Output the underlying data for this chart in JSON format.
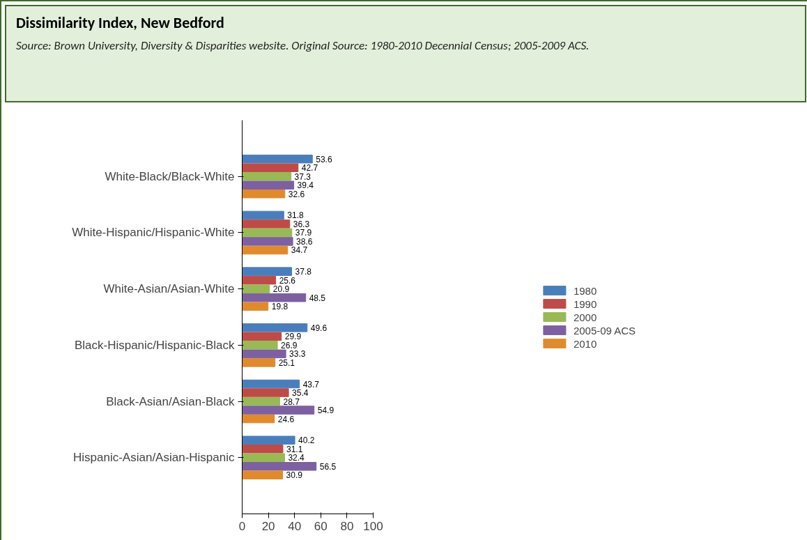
{
  "chart_data": {
    "type": "bar",
    "orientation": "horizontal",
    "title": "Dissimilarity Index, New Bedford",
    "subtitle": "Source: Brown University, Diversity & Disparities website. Original Source: 1980-2010 Decennial Census; 2005-2009 ACS.",
    "categories": [
      "White-Black/Black-White",
      "White-Hispanic/Hispanic-White",
      "White-Asian/Asian-White",
      "Black-Hispanic/Hispanic-Black",
      "Black-Asian/Asian-Black",
      "Hispanic-Asian/Asian-Hispanic"
    ],
    "series": [
      {
        "name": "1980",
        "color": "#4a7ebb",
        "values": [
          53.6,
          31.8,
          37.8,
          49.6,
          43.7,
          40.2
        ]
      },
      {
        "name": "1990",
        "color": "#be4b48",
        "values": [
          42.7,
          36.3,
          25.6,
          29.9,
          35.4,
          31.1
        ]
      },
      {
        "name": "2000",
        "color": "#98b954",
        "values": [
          37.3,
          37.9,
          20.9,
          26.9,
          28.7,
          32.4
        ]
      },
      {
        "name": "2005-09 ACS",
        "color": "#7d60a0",
        "values": [
          39.4,
          38.6,
          48.5,
          33.3,
          54.9,
          56.5
        ]
      },
      {
        "name": "2010",
        "color": "#e08a2e",
        "values": [
          32.6,
          34.7,
          19.8,
          25.1,
          24.6,
          30.9
        ]
      }
    ],
    "xlim": [
      0,
      100
    ],
    "xticks": [
      0,
      20,
      40,
      60,
      80,
      100
    ],
    "data_labels": true,
    "legend": "right",
    "grid": false
  }
}
